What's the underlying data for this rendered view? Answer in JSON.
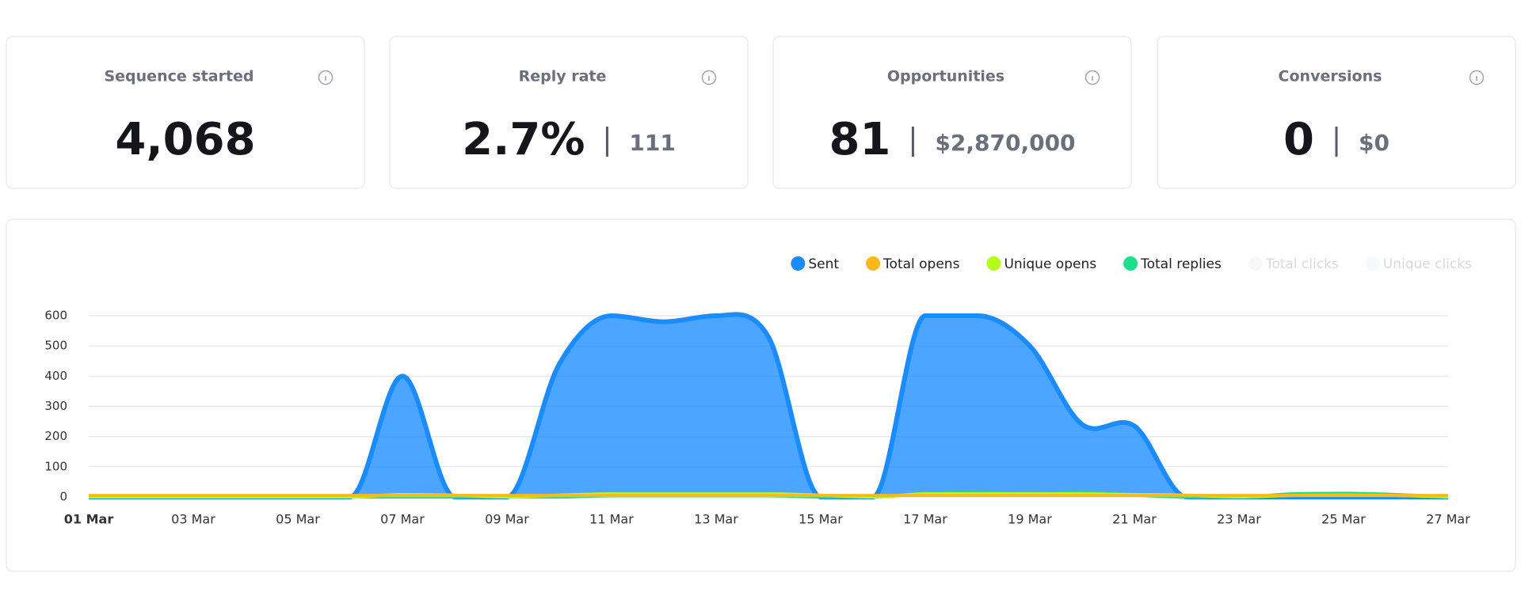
{
  "cards": [
    {
      "title": "Sequence started",
      "value": "4,068"
    },
    {
      "title": "Reply rate",
      "value": "2.7%",
      "secondary": "111"
    },
    {
      "title": "Opportunities",
      "value": "81",
      "secondary": "$2,870,000"
    },
    {
      "title": "Conversions",
      "value": "0",
      "secondary": "$0"
    }
  ],
  "chart_data": {
    "type": "area",
    "categories": [
      "01 Mar",
      null,
      "03 Mar",
      null,
      "05 Mar",
      null,
      "07 Mar",
      null,
      "09 Mar",
      null,
      "11 Mar",
      null,
      "13 Mar",
      null,
      "15 Mar",
      null,
      "17 Mar",
      null,
      "19 Mar",
      null,
      "21 Mar",
      null,
      "23 Mar",
      null,
      "25 Mar",
      null,
      "27 Mar"
    ],
    "series": [
      {
        "name": "Sent",
        "color": "#1a8cff",
        "values": [
          0,
          0,
          0,
          0,
          0,
          0,
          400,
          0,
          0,
          440,
          600,
          580,
          600,
          530,
          0,
          0,
          600,
          600,
          500,
          240,
          235,
          0,
          0,
          0,
          0,
          0,
          0
        ]
      },
      {
        "name": "Total opens",
        "color": "#ffb81c",
        "values": [
          5,
          5,
          5,
          5,
          5,
          5,
          5,
          5,
          5,
          5,
          5,
          5,
          5,
          5,
          5,
          5,
          5,
          5,
          5,
          5,
          5,
          5,
          5,
          5,
          5,
          5,
          5
        ]
      },
      {
        "name": "Unique opens",
        "color": "#b3ff1a",
        "values": [
          0,
          0,
          0,
          0,
          0,
          0,
          8,
          6,
          0,
          6,
          10,
          10,
          10,
          10,
          6,
          0,
          10,
          10,
          10,
          10,
          8,
          6,
          0,
          5,
          6,
          5,
          0
        ]
      },
      {
        "name": "Total replies",
        "color": "#1ae08c",
        "values": [
          0,
          0,
          0,
          0,
          0,
          0,
          0,
          0,
          0,
          0,
          4,
          4,
          4,
          4,
          0,
          0,
          12,
          15,
          12,
          15,
          6,
          0,
          0,
          10,
          12,
          8,
          0
        ]
      },
      {
        "name": "Total clicks",
        "color": "#e9f5f0",
        "hidden": true,
        "values": [
          0,
          0,
          0,
          0,
          0,
          0,
          0,
          0,
          0,
          0,
          0,
          0,
          0,
          0,
          0,
          0,
          0,
          0,
          0,
          0,
          0,
          0,
          0,
          0,
          0,
          0,
          0
        ]
      },
      {
        "name": "Unique clicks",
        "color": "#e6f6f8",
        "hidden": true,
        "values": [
          0,
          0,
          0,
          0,
          0,
          0,
          0,
          0,
          0,
          0,
          0,
          0,
          0,
          0,
          0,
          0,
          0,
          0,
          0,
          0,
          0,
          0,
          0,
          0,
          0,
          0,
          0
        ]
      }
    ],
    "ylim": [
      0,
      600
    ],
    "yticks": [
      0,
      100,
      200,
      300,
      400,
      500,
      600
    ],
    "grid": true
  }
}
